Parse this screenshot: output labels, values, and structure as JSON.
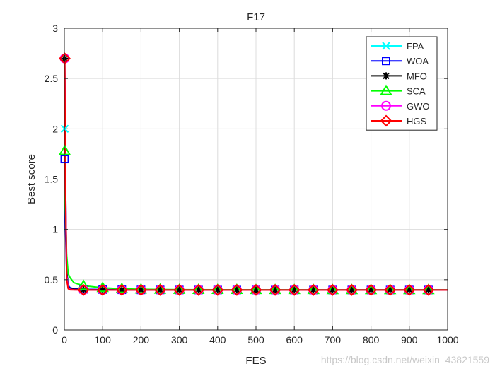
{
  "watermark": "https://blog.csdn.net/weixin_43821559",
  "chart_data": {
    "type": "line",
    "title": "F17",
    "xlabel": "FES",
    "ylabel": "Best score",
    "xlim": [
      0,
      1000
    ],
    "ylim": [
      0,
      3
    ],
    "xticks": [
      0,
      100,
      200,
      300,
      400,
      500,
      600,
      700,
      800,
      900,
      1000
    ],
    "yticks": [
      0,
      0.5,
      1,
      1.5,
      2,
      2.5,
      3
    ],
    "grid": true,
    "legend_position": "top-right",
    "marker_x": [
      1,
      50,
      100,
      150,
      200,
      250,
      300,
      350,
      400,
      450,
      500,
      550,
      600,
      650,
      700,
      750,
      800,
      850,
      900,
      950
    ],
    "series": [
      {
        "name": "FPA",
        "color": "#00ffff",
        "marker": "x",
        "x": [
          1,
          3,
          6,
          10,
          15,
          25,
          50,
          100,
          150,
          200,
          300,
          500,
          700,
          1000
        ],
        "y": [
          2.0,
          1.2,
          0.62,
          0.45,
          0.42,
          0.41,
          0.405,
          0.402,
          0.401,
          0.4,
          0.398,
          0.398,
          0.398,
          0.398
        ]
      },
      {
        "name": "WOA",
        "color": "#0000ff",
        "marker": "square",
        "x": [
          1,
          3,
          6,
          10,
          15,
          25,
          50,
          100,
          150,
          200,
          300,
          500,
          700,
          1000
        ],
        "y": [
          1.7,
          1.0,
          0.55,
          0.44,
          0.42,
          0.41,
          0.405,
          0.402,
          0.4,
          0.399,
          0.398,
          0.398,
          0.398,
          0.398
        ]
      },
      {
        "name": "MFO",
        "color": "#000000",
        "marker": "asterisk",
        "x": [
          1,
          3,
          6,
          10,
          15,
          25,
          50,
          100,
          150,
          200,
          300,
          500,
          700,
          1000
        ],
        "y": [
          2.7,
          1.5,
          0.6,
          0.43,
          0.41,
          0.405,
          0.4,
          0.399,
          0.398,
          0.398,
          0.398,
          0.398,
          0.398,
          0.398
        ]
      },
      {
        "name": "SCA",
        "color": "#00ff00",
        "marker": "triangle",
        "x": [
          1,
          3,
          6,
          10,
          15,
          25,
          50,
          100,
          150,
          200,
          300,
          500,
          700,
          1000
        ],
        "y": [
          1.78,
          1.2,
          0.75,
          0.56,
          0.52,
          0.47,
          0.44,
          0.42,
          0.41,
          0.405,
          0.401,
          0.4,
          0.399,
          0.399
        ]
      },
      {
        "name": "GWO",
        "color": "#ff00ff",
        "marker": "circle",
        "x": [
          1,
          3,
          6,
          10,
          15,
          25,
          50,
          100,
          150,
          200,
          300,
          500,
          700,
          1000
        ],
        "y": [
          2.7,
          1.5,
          0.55,
          0.42,
          0.405,
          0.4,
          0.399,
          0.398,
          0.398,
          0.398,
          0.398,
          0.398,
          0.398,
          0.398
        ]
      },
      {
        "name": "HGS",
        "color": "#ff0000",
        "marker": "diamond",
        "x": [
          1,
          3,
          6,
          10,
          15,
          25,
          50,
          100,
          150,
          200,
          300,
          500,
          700,
          1000
        ],
        "y": [
          2.7,
          1.4,
          0.5,
          0.41,
          0.4,
          0.399,
          0.398,
          0.398,
          0.398,
          0.398,
          0.398,
          0.398,
          0.398,
          0.398
        ]
      }
    ]
  }
}
